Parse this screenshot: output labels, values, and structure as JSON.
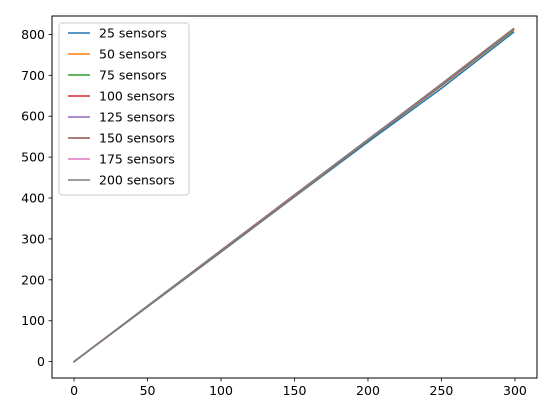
{
  "chart_data": {
    "type": "line",
    "title": "",
    "xlabel": "",
    "ylabel": "",
    "xlim": [
      -15,
      315
    ],
    "ylim": [
      -40,
      845
    ],
    "xticks": [
      0,
      50,
      100,
      150,
      200,
      250,
      300
    ],
    "xtick_labels": [
      "0",
      "50",
      "100",
      "150",
      "200",
      "250",
      "300"
    ],
    "yticks": [
      0,
      100,
      200,
      300,
      400,
      500,
      600,
      700,
      800
    ],
    "ytick_labels": [
      "0",
      "100",
      "200",
      "300",
      "400",
      "500",
      "600",
      "700",
      "800"
    ],
    "grid": false,
    "legend": "top-left",
    "x": [
      0,
      50,
      100,
      150,
      200,
      250,
      299
    ],
    "series": [
      {
        "name": "25 sensors",
        "color": "#1f77b4",
        "values": [
          0,
          134,
          268,
          403,
          537,
          668,
          805
        ]
      },
      {
        "name": "50 sensors",
        "color": "#ff7f0e",
        "values": [
          0,
          135,
          270,
          405,
          541,
          674,
          810
        ]
      },
      {
        "name": "75 sensors",
        "color": "#2ca02c",
        "values": [
          0,
          135,
          271,
          406,
          541,
          675,
          811
        ]
      },
      {
        "name": "100 sensors",
        "color": "#d62728",
        "values": [
          0,
          136,
          271,
          406,
          542,
          676,
          812
        ]
      },
      {
        "name": "125 sensors",
        "color": "#9467bd",
        "values": [
          0,
          136,
          272,
          407,
          542,
          677,
          813
        ]
      },
      {
        "name": "150 sensors",
        "color": "#8c564b",
        "values": [
          0,
          136,
          272,
          408,
          543,
          679,
          814
        ]
      },
      {
        "name": "175 sensors",
        "color": "#e377c2",
        "values": [
          0,
          136,
          272,
          407,
          543,
          678,
          813
        ]
      },
      {
        "name": "200 sensors",
        "color": "#7f7f7f",
        "values": [
          0,
          136,
          272,
          407,
          543,
          678,
          813
        ]
      }
    ]
  }
}
